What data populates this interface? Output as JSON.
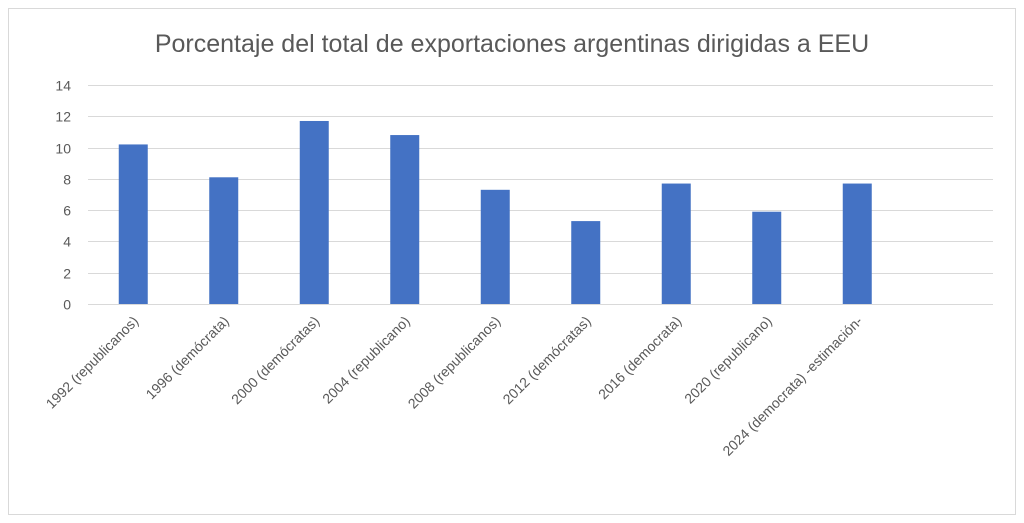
{
  "chart_data": {
    "type": "bar",
    "title": "Porcentaje del total de exportaciones argentinas dirigidas a EEU",
    "xlabel": "",
    "ylabel": "",
    "ylim": [
      0,
      14
    ],
    "yticks": [
      0,
      2,
      4,
      6,
      8,
      10,
      12,
      14
    ],
    "grid": true,
    "legend": "none",
    "categories": [
      "1992 (republicanos)",
      "1996 (demócrata)",
      "2000 (demócratas)",
      "2004 (republicano)",
      "2008 (republicanos)",
      "2012 (demócratas)",
      "2016 (democrata)",
      "2020 (republicano)",
      "2024 (democrata) -estimación-",
      ""
    ],
    "values": [
      10.2,
      8.1,
      11.7,
      10.8,
      7.3,
      5.3,
      7.7,
      5.9,
      7.7,
      null
    ],
    "color": "#4472C4"
  }
}
